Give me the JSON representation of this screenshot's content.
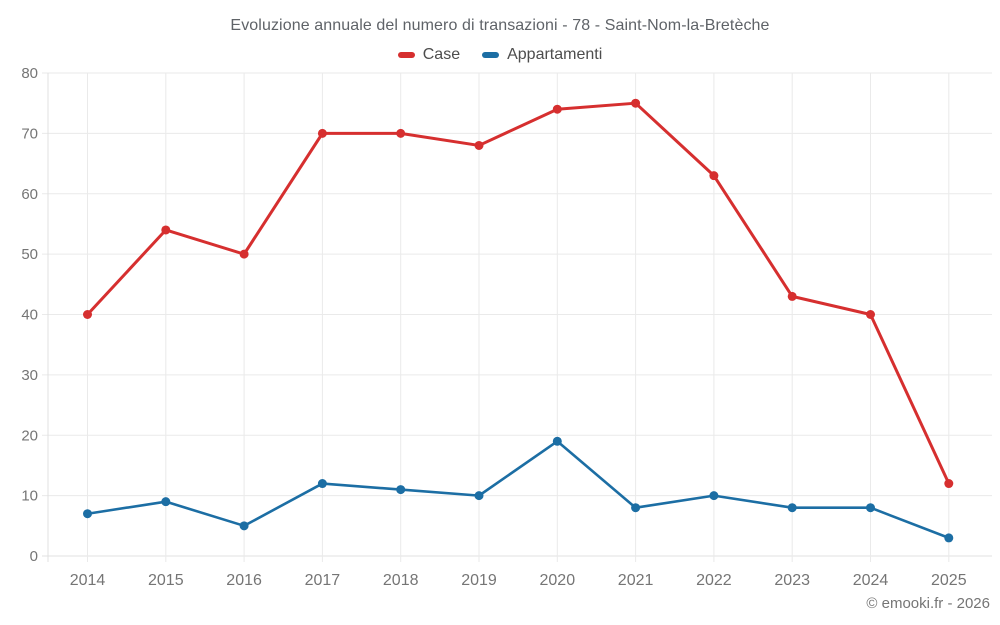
{
  "chart_data": {
    "type": "line",
    "title": "Evoluzione annuale del numero di transazioni - 78 - Saint-Nom-la-Bretèche",
    "categories": [
      "2014",
      "2015",
      "2016",
      "2017",
      "2018",
      "2019",
      "2020",
      "2021",
      "2022",
      "2023",
      "2024",
      "2025"
    ],
    "series": [
      {
        "name": "Case",
        "color": "#d62f2f",
        "values": [
          40,
          54,
          50,
          70,
          70,
          68,
          74,
          75,
          63,
          43,
          40,
          12
        ]
      },
      {
        "name": "Appartamenti",
        "color": "#1c6ea4",
        "values": [
          7,
          9,
          5,
          12,
          11,
          10,
          19,
          8,
          10,
          8,
          8,
          3
        ]
      }
    ],
    "xlabel": "",
    "ylabel": "",
    "ylim": [
      0,
      80
    ],
    "ytick_step": 10,
    "grid": true,
    "legend_position": "top"
  },
  "footer": {
    "copyright": "© emooki.fr - 2026"
  },
  "colors": {
    "case_red": "#d62f2f",
    "appartamenti_blue": "#1c6ea4",
    "gridline": "#eaeaea",
    "axis_line": "#e0e0e0",
    "tick_label": "#757575",
    "title_text": "#5f6368"
  }
}
